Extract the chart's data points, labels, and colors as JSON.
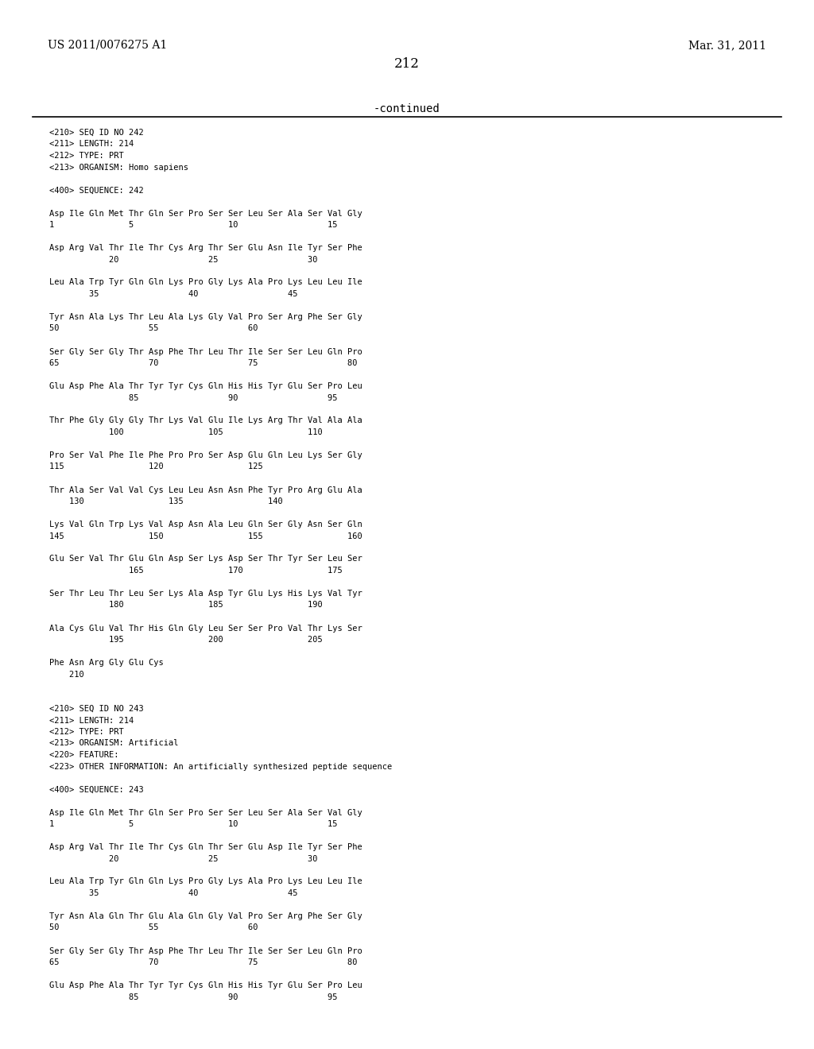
{
  "header_left": "US 2011/0076275 A1",
  "header_right": "Mar. 31, 2011",
  "page_number": "212",
  "continued_label": "-continued",
  "background_color": "#ffffff",
  "text_color": "#000000",
  "lines": [
    "<210> SEQ ID NO 242",
    "<211> LENGTH: 214",
    "<212> TYPE: PRT",
    "<213> ORGANISM: Homo sapiens",
    "",
    "<400> SEQUENCE: 242",
    "",
    "Asp Ile Gln Met Thr Gln Ser Pro Ser Ser Leu Ser Ala Ser Val Gly",
    "1               5                   10                  15",
    "",
    "Asp Arg Val Thr Ile Thr Cys Arg Thr Ser Glu Asn Ile Tyr Ser Phe",
    "            20                  25                  30",
    "",
    "Leu Ala Trp Tyr Gln Gln Lys Pro Gly Lys Ala Pro Lys Leu Leu Ile",
    "        35                  40                  45",
    "",
    "Tyr Asn Ala Lys Thr Leu Ala Lys Gly Val Pro Ser Arg Phe Ser Gly",
    "50                  55                  60",
    "",
    "Ser Gly Ser Gly Thr Asp Phe Thr Leu Thr Ile Ser Ser Leu Gln Pro",
    "65                  70                  75                  80",
    "",
    "Glu Asp Phe Ala Thr Tyr Tyr Cys Gln His His Tyr Glu Ser Pro Leu",
    "                85                  90                  95",
    "",
    "Thr Phe Gly Gly Gly Thr Lys Val Glu Ile Lys Arg Thr Val Ala Ala",
    "            100                 105                 110",
    "",
    "Pro Ser Val Phe Ile Phe Pro Pro Ser Asp Glu Gln Leu Lys Ser Gly",
    "115                 120                 125",
    "",
    "Thr Ala Ser Val Val Cys Leu Leu Asn Asn Phe Tyr Pro Arg Glu Ala",
    "    130                 135                 140",
    "",
    "Lys Val Gln Trp Lys Val Asp Asn Ala Leu Gln Ser Gly Asn Ser Gln",
    "145                 150                 155                 160",
    "",
    "Glu Ser Val Thr Glu Gln Asp Ser Lys Asp Ser Thr Tyr Ser Leu Ser",
    "                165                 170                 175",
    "",
    "Ser Thr Leu Thr Leu Ser Lys Ala Asp Tyr Glu Lys His Lys Val Tyr",
    "            180                 185                 190",
    "",
    "Ala Cys Glu Val Thr His Gln Gly Leu Ser Ser Pro Val Thr Lys Ser",
    "            195                 200                 205",
    "",
    "Phe Asn Arg Gly Glu Cys",
    "    210",
    "",
    "",
    "<210> SEQ ID NO 243",
    "<211> LENGTH: 214",
    "<212> TYPE: PRT",
    "<213> ORGANISM: Artificial",
    "<220> FEATURE:",
    "<223> OTHER INFORMATION: An artificially synthesized peptide sequence",
    "",
    "<400> SEQUENCE: 243",
    "",
    "Asp Ile Gln Met Thr Gln Ser Pro Ser Ser Leu Ser Ala Ser Val Gly",
    "1               5                   10                  15",
    "",
    "Asp Arg Val Thr Ile Thr Cys Gln Thr Ser Glu Asp Ile Tyr Ser Phe",
    "            20                  25                  30",
    "",
    "Leu Ala Trp Tyr Gln Gln Lys Pro Gly Lys Ala Pro Lys Leu Leu Ile",
    "        35                  40                  45",
    "",
    "Tyr Asn Ala Gln Thr Glu Ala Gln Gly Val Pro Ser Arg Phe Ser Gly",
    "50                  55                  60",
    "",
    "Ser Gly Ser Gly Thr Asp Phe Thr Leu Thr Ile Ser Ser Leu Gln Pro",
    "65                  70                  75                  80",
    "",
    "Glu Asp Phe Ala Thr Tyr Tyr Cys Gln His His Tyr Glu Ser Pro Leu",
    "                85                  90                  95"
  ]
}
